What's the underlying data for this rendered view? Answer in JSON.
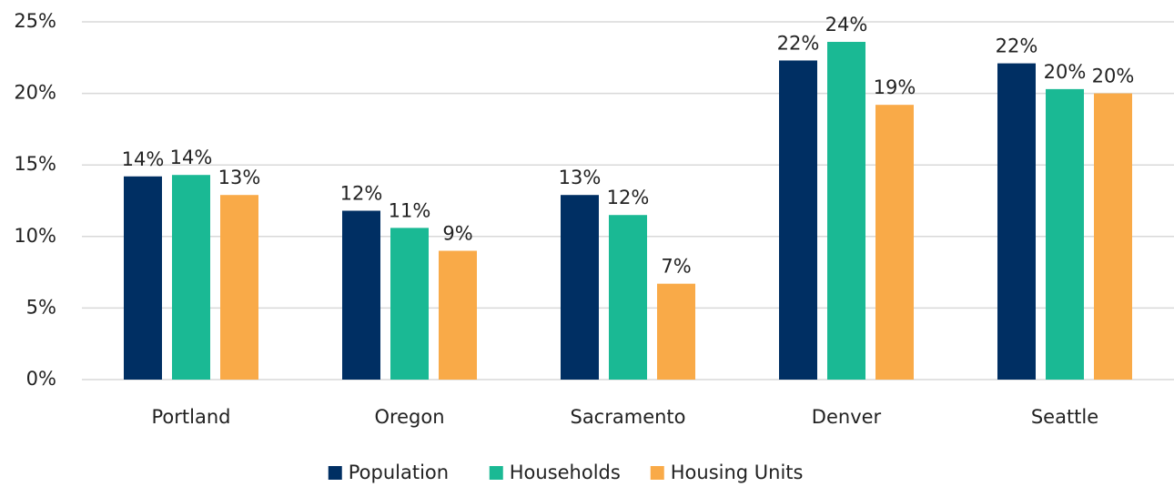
{
  "chart_data": {
    "type": "bar",
    "categories": [
      "Portland",
      "Oregon",
      "Sacramento",
      "Denver",
      "Seattle"
    ],
    "series": [
      {
        "name": "Population",
        "color": "#002f63",
        "values": [
          14.2,
          11.8,
          12.9,
          22.3,
          22.1
        ],
        "value_labels": [
          "14%",
          "12%",
          "13%",
          "22%",
          "22%"
        ]
      },
      {
        "name": "Households",
        "color": "#1ab994",
        "values": [
          14.3,
          10.6,
          11.5,
          23.6,
          20.3
        ],
        "value_labels": [
          "14%",
          "11%",
          "12%",
          "24%",
          "20%"
        ]
      },
      {
        "name": "Housing Units",
        "color": "#f9aa48",
        "values": [
          12.9,
          9.0,
          6.7,
          19.2,
          20.0
        ],
        "value_labels": [
          "13%",
          "9%",
          "7%",
          "19%",
          "20%"
        ]
      }
    ],
    "ylim": [
      0,
      25
    ],
    "yticks": [
      {
        "value": 0,
        "label": "0%"
      },
      {
        "value": 5,
        "label": "5%"
      },
      {
        "value": 10,
        "label": "10%"
      },
      {
        "value": 15,
        "label": "15%"
      },
      {
        "value": 20,
        "label": "20%"
      },
      {
        "value": 25,
        "label": "25%"
      }
    ],
    "grid": true,
    "legend": "bottom"
  }
}
